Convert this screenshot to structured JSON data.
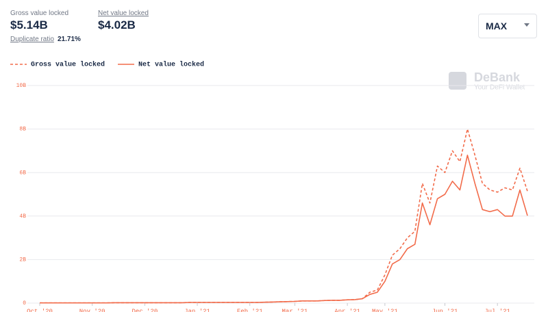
{
  "header": {
    "gross_label": "Gross value locked",
    "gross_value": "$5.14B",
    "net_label": "Net value locked",
    "net_value": "$4.02B",
    "ratio_label": "Duplicate ratio",
    "ratio_value": "21.71%",
    "range": "MAX"
  },
  "watermark": {
    "name": "DeBank",
    "tagline": "Your DeFi Wallet"
  },
  "chart_data": {
    "type": "line",
    "categories": [
      "Oct '20",
      null,
      null,
      null,
      null,
      null,
      null,
      "Nov '20",
      null,
      null,
      null,
      null,
      null,
      null,
      "Dec '20",
      null,
      null,
      null,
      null,
      null,
      null,
      "Jan '21",
      null,
      null,
      null,
      null,
      null,
      null,
      "Feb '21",
      null,
      null,
      null,
      null,
      null,
      "Mar '21",
      null,
      null,
      null,
      null,
      null,
      null,
      "Apr '21",
      null,
      null,
      null,
      null,
      "May '21",
      null,
      null,
      null,
      null,
      null,
      null,
      null,
      "Jun '21",
      null,
      null,
      null,
      null,
      null,
      null,
      "Jul '21",
      null,
      null,
      null,
      null
    ],
    "series": [
      {
        "name": "Gross value locked",
        "color": "#f26b4a",
        "dashed": true,
        "values": [
          0.01,
          0.01,
          0.01,
          0.01,
          0.01,
          0.01,
          0.01,
          0.01,
          0.01,
          0.01,
          0.02,
          0.02,
          0.02,
          0.02,
          0.02,
          0.02,
          0.02,
          0.02,
          0.02,
          0.02,
          0.03,
          0.03,
          0.03,
          0.03,
          0.03,
          0.03,
          0.03,
          0.03,
          0.03,
          0.03,
          0.04,
          0.05,
          0.06,
          0.07,
          0.08,
          0.1,
          0.1,
          0.1,
          0.12,
          0.13,
          0.13,
          0.15,
          0.16,
          0.2,
          0.5,
          0.6,
          1.3,
          2.2,
          2.5,
          3.0,
          3.3,
          5.5,
          4.6,
          6.3,
          6.0,
          7.0,
          6.5,
          8.0,
          6.8,
          5.5,
          5.2,
          5.1,
          5.3,
          5.2,
          6.2,
          5.14
        ]
      },
      {
        "name": "Net value locked",
        "color": "#f26b4a",
        "dashed": false,
        "values": [
          0.01,
          0.01,
          0.01,
          0.01,
          0.01,
          0.01,
          0.01,
          0.01,
          0.01,
          0.01,
          0.02,
          0.02,
          0.02,
          0.02,
          0.02,
          0.02,
          0.02,
          0.02,
          0.02,
          0.02,
          0.03,
          0.03,
          0.03,
          0.03,
          0.03,
          0.03,
          0.03,
          0.03,
          0.03,
          0.03,
          0.04,
          0.05,
          0.06,
          0.07,
          0.08,
          0.1,
          0.1,
          0.1,
          0.12,
          0.13,
          0.13,
          0.15,
          0.16,
          0.2,
          0.4,
          0.5,
          1.0,
          1.8,
          2.0,
          2.5,
          2.7,
          4.6,
          3.6,
          4.8,
          5.0,
          5.6,
          5.2,
          6.8,
          5.5,
          4.3,
          4.2,
          4.3,
          4.0,
          4.0,
          5.2,
          4.02
        ]
      }
    ],
    "ylim": [
      0,
      10
    ],
    "yticks": [
      0,
      {
        "value": 2,
        "label": "2B"
      },
      {
        "value": 4,
        "label": "4B"
      },
      {
        "value": 6,
        "label": "6B"
      },
      {
        "value": 8,
        "label": "8B"
      },
      {
        "value": 10,
        "label": "10B"
      }
    ],
    "grid": true
  }
}
